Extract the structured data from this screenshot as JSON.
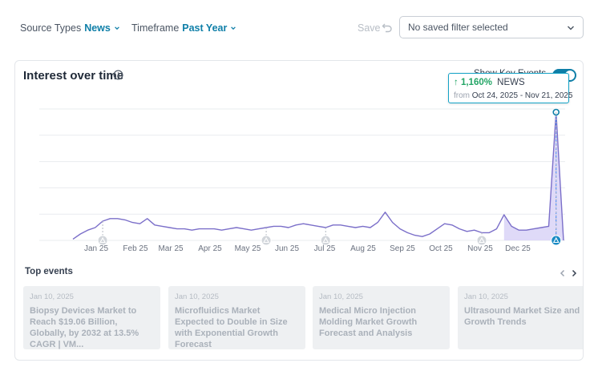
{
  "filters": {
    "source_types": {
      "label": "Source Types",
      "value": "News"
    },
    "timeframe": {
      "label": "Timeframe",
      "value": "Past Year"
    }
  },
  "save_label": "Save",
  "saved_filter": {
    "placeholder": "No saved filter selected"
  },
  "card": {
    "title": "Interest over time",
    "toggle_label": "Show Key Events",
    "toggle_on": true
  },
  "tooltip": {
    "arrow": "↑",
    "percent": "1,160%",
    "source": "NEWS",
    "from_label": "from",
    "range": "Oct 24, 2025 - Nov 21, 2025"
  },
  "chart_data": {
    "type": "line",
    "title": "Interest over time",
    "x_tick_labels": [
      "Jan 25",
      "Feb 25",
      "Mar 25",
      "Apr 25",
      "May 25",
      "Jun 25",
      "Jul 25",
      "Aug 25",
      "Sep 25",
      "Oct 25",
      "Nov 25",
      "Dec 25"
    ],
    "ylim": [
      0,
      100
    ],
    "grid": true,
    "series": [
      {
        "color": "#7b6fc9",
        "values": [
          1,
          5,
          8,
          10,
          15,
          17,
          17,
          16,
          14,
          13,
          17,
          12,
          11,
          10,
          9,
          9,
          8,
          9,
          9,
          9,
          8,
          9,
          10,
          9,
          8,
          9,
          10,
          11,
          11,
          10,
          12,
          13,
          12,
          11,
          10,
          12,
          12,
          11,
          10,
          11,
          10,
          14,
          22,
          14,
          9,
          6,
          4,
          3,
          5,
          9,
          13,
          12,
          9,
          7,
          8,
          6,
          6,
          9,
          20,
          11,
          8,
          8,
          9,
          10,
          11,
          100,
          0
        ]
      }
    ],
    "highlight_range": {
      "start_index": 58,
      "end_index": 66
    },
    "peak_index": 65,
    "key_event_indices": [
      4,
      26,
      34,
      55,
      65
    ]
  },
  "top_events": {
    "title": "Top events",
    "items": [
      {
        "date": "Jan 10, 2025",
        "title": "Biopsy Devices Market to Reach $19.06 Billion, Globally, by 2032 at 13.5% CAGR | VM..."
      },
      {
        "date": "Jan 10, 2025",
        "title": "Microfluidics Market Expected to Double in Size with Exponential Growth Forecast"
      },
      {
        "date": "Jan 10, 2025",
        "title": "Medical Micro Injection Molding Market Growth Forecast and Analysis"
      },
      {
        "date": "Jan 10, 2025",
        "title": "Ultrasound Market Size and Growth Trends"
      }
    ]
  },
  "colors": {
    "accent": "#0f7fa8",
    "line": "#7b6fc9",
    "area": "#d9d3f7",
    "positive": "#22a565",
    "tooltip_border": "#14a3c7"
  }
}
